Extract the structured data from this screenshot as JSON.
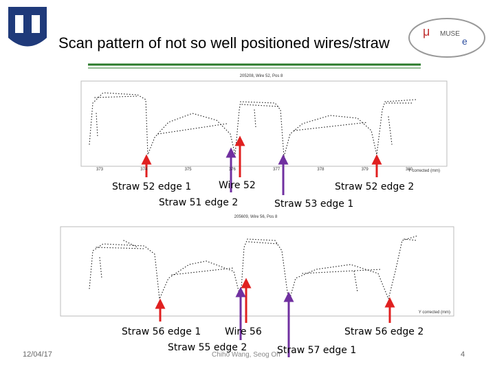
{
  "header": {
    "title": "Scan pattern of not so well positioned wires/straw"
  },
  "plots": [
    {
      "title": "205208, Wire 52, Pos 8",
      "x_axis_label": "Y corrected (mm)",
      "x_ticks": [
        "373",
        "374",
        "375",
        "376",
        "377",
        "378",
        "379",
        "380"
      ]
    },
    {
      "title": "205609, Wire 56, Pos 8",
      "x_axis_label": "Y corrected (mm)"
    }
  ],
  "annotations": [
    {
      "label": "Straw 52 edge 1"
    },
    {
      "label": "Wire 52"
    },
    {
      "label": "Straw 52 edge 2"
    },
    {
      "label": "Straw 51 edge 2"
    },
    {
      "label": "Straw 53 edge 1"
    },
    {
      "label": "Straw 56 edge 1"
    },
    {
      "label": "Wire 56"
    },
    {
      "label": "Straw 56 edge 2"
    },
    {
      "label": "Straw 55 edge 2"
    },
    {
      "label": "Straw 57 edge 1"
    }
  ],
  "footer": {
    "date": "12/04/17",
    "author": "Chiho Wang, Seog Oh",
    "page": "4"
  }
}
